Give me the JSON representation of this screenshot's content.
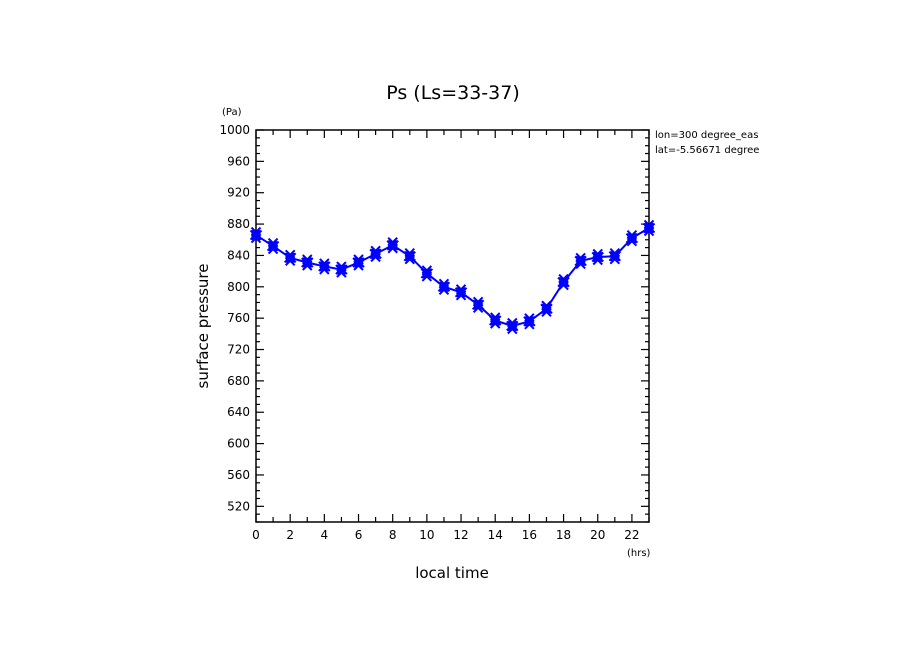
{
  "chart_data": {
    "type": "line",
    "title": "Ps (Ls=33-37)",
    "xlabel": "local time",
    "ylabel": "surface pressure",
    "x_unit": "(hrs)",
    "y_unit": "(Pa)",
    "xlim": [
      0,
      23
    ],
    "ylim": [
      500,
      1000
    ],
    "x_ticks": [
      "0",
      "2",
      "4",
      "6",
      "8",
      "10",
      "12",
      "14",
      "16",
      "18",
      "20",
      "22"
    ],
    "y_ticks": [
      "520",
      "560",
      "600",
      "640",
      "680",
      "720",
      "760",
      "800",
      "840",
      "880",
      "920",
      "960",
      "1000"
    ],
    "annotations": [
      "lon=300 degree_eas",
      "lat=-5.56671 degree"
    ],
    "grid": false,
    "series": [
      {
        "color": "#0000ff",
        "marker": "x",
        "x": [
          0,
          1,
          2,
          3,
          4,
          5,
          6,
          7,
          8,
          9,
          10,
          11,
          12,
          13,
          14,
          15,
          16,
          17,
          18,
          19,
          20,
          21,
          22,
          23
        ],
        "values": [
          866,
          852,
          837,
          831,
          826,
          822,
          831,
          842,
          853,
          839,
          817,
          800,
          793,
          777,
          757,
          750,
          756,
          772,
          806,
          833,
          838,
          839,
          862,
          875
        ]
      }
    ]
  }
}
